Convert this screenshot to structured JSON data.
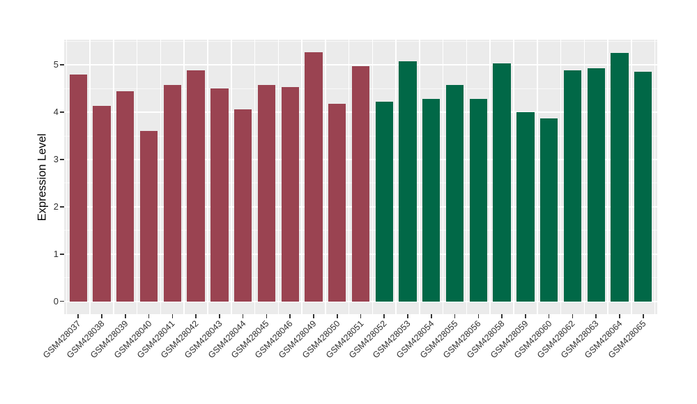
{
  "chart_data": {
    "type": "bar",
    "title": "",
    "xlabel": "",
    "ylabel": "Expression Level",
    "ylim": [
      -0.27,
      5.52
    ],
    "yticks": [
      0,
      1,
      2,
      3,
      4,
      5
    ],
    "minor_yticks": [
      0.5,
      1.5,
      2.5,
      3.5,
      4.5,
      5.5
    ],
    "grid": "on",
    "legend_position": "none",
    "panel_background_color": "#EBEBEB",
    "gridline_color": "#FFFFFF",
    "axis_text_color": "#303030",
    "group_colors": {
      "left_group": "#9A4351",
      "right_group": "#016847"
    },
    "categories": [
      "GSM428037",
      "GSM428038",
      "GSM428039",
      "GSM428040",
      "GSM428041",
      "GSM428042",
      "GSM428043",
      "GSM428044",
      "GSM428045",
      "GSM428046",
      "GSM428049",
      "GSM428050",
      "GSM428051",
      "GSM428052",
      "GSM428053",
      "GSM428054",
      "GSM428055",
      "GSM428056",
      "GSM428058",
      "GSM428059",
      "GSM428060",
      "GSM428062",
      "GSM428063",
      "GSM428064",
      "GSM428065"
    ],
    "values": [
      4.79,
      4.13,
      4.44,
      3.61,
      4.58,
      4.89,
      4.5,
      4.06,
      4.57,
      4.53,
      5.27,
      4.18,
      4.98,
      4.22,
      5.08,
      4.28,
      4.58,
      4.28,
      5.03,
      4.0,
      3.87,
      4.89,
      4.93,
      5.26,
      4.86
    ],
    "bar_colors": [
      "#9A4351",
      "#9A4351",
      "#9A4351",
      "#9A4351",
      "#9A4351",
      "#9A4351",
      "#9A4351",
      "#9A4351",
      "#9A4351",
      "#9A4351",
      "#9A4351",
      "#9A4351",
      "#9A4351",
      "#016847",
      "#016847",
      "#016847",
      "#016847",
      "#016847",
      "#016847",
      "#016847",
      "#016847",
      "#016847",
      "#016847",
      "#016847",
      "#016847"
    ]
  }
}
